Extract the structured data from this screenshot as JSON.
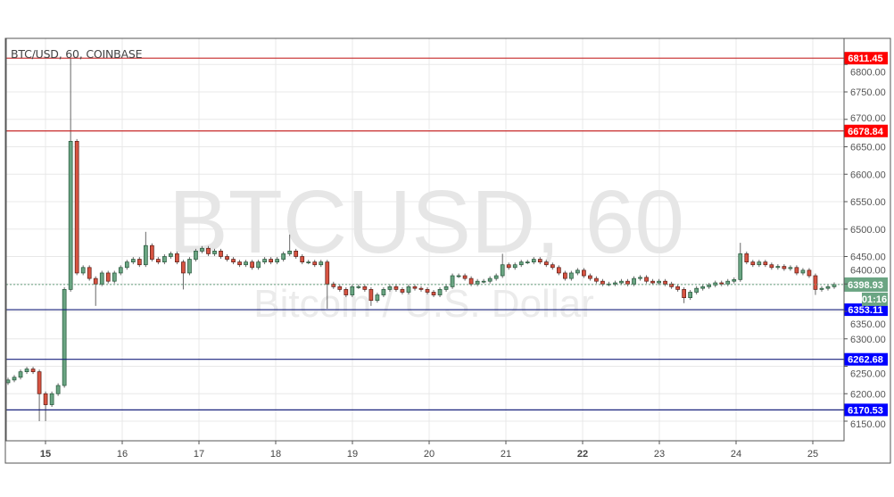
{
  "header": {
    "title": "BTC/USD, 60, COINBASE"
  },
  "watermark": {
    "symbol": "BTCUSD, 60",
    "description": "Bitcoin / U.S. Dollar"
  },
  "chart_data": {
    "type": "candlestick",
    "symbol": "BTC/USD",
    "interval": "60",
    "exchange": "COINBASE",
    "ylim": [
      6120,
      6855
    ],
    "y_ticks": [
      6150,
      6200,
      6250,
      6300,
      6350,
      6400,
      6450,
      6500,
      6550,
      6600,
      6650,
      6700,
      6750,
      6800
    ],
    "x_ticks": [
      "15",
      "16",
      "17",
      "18",
      "19",
      "20",
      "21",
      "22",
      "23",
      "24",
      "25"
    ],
    "x_ticks_bold": [
      "15",
      "22"
    ],
    "grid": true,
    "candle_interval_hours": 2,
    "close": [
      6225,
      6230,
      6240,
      6245,
      6240,
      6200,
      6180,
      6200,
      6215,
      6390,
      6660,
      6420,
      6430,
      6410,
      6400,
      6420,
      6405,
      6420,
      6430,
      6440,
      6445,
      6435,
      6470,
      6445,
      6440,
      6450,
      6455,
      6440,
      6420,
      6445,
      6460,
      6465,
      6455,
      6460,
      6450,
      6445,
      6440,
      6435,
      6440,
      6430,
      6440,
      6445,
      6440,
      6445,
      6455,
      6460,
      6450,
      6440,
      6440,
      6435,
      6440,
      6400,
      6395,
      6390,
      6380,
      6395,
      6395,
      6390,
      6370,
      6380,
      6390,
      6395,
      6390,
      6385,
      6395,
      6392,
      6390,
      6385,
      6380,
      6390,
      6395,
      6415,
      6415,
      6410,
      6400,
      6405,
      6405,
      6410,
      6415,
      6435,
      6430,
      6435,
      6440,
      6440,
      6445,
      6440,
      6435,
      6430,
      6420,
      6410,
      6420,
      6425,
      6415,
      6410,
      6405,
      6400,
      6400,
      6402,
      6405,
      6400,
      6410,
      6412,
      6405,
      6402,
      6405,
      6400,
      6395,
      6390,
      6375,
      6385,
      6392,
      6395,
      6398,
      6402,
      6400,
      6405,
      6408,
      6455,
      6440,
      6435,
      6440,
      6435,
      6430,
      6432,
      6428,
      6430,
      6420,
      6425,
      6415,
      6390,
      6392,
      6395,
      6398.93
    ],
    "highs": {
      "10": 6811.45,
      "22": 6495,
      "45": 6490,
      "79": 6455,
      "117": 6475
    },
    "lows": {
      "5": 6150,
      "6": 6150,
      "14": 6360,
      "28": 6390,
      "51": 6355,
      "58": 6360,
      "108": 6365,
      "129": 6380
    },
    "horizontal_lines": [
      {
        "value": "6811.45",
        "color": "#ff0000",
        "line": "#c62828"
      },
      {
        "value": "6678.84",
        "color": "#ff0000",
        "line": "#c62828"
      },
      {
        "value": "6353.11",
        "color": "#0000ff",
        "line": "#1a237e"
      },
      {
        "value": "6262.68",
        "color": "#0000ff",
        "line": "#1a237e"
      },
      {
        "value": "6170.53",
        "color": "#0000ff",
        "line": "#1a237e"
      }
    ],
    "last_price": {
      "value": "6398.93",
      "countdown": "01:16",
      "color": "#6ba583"
    },
    "colors": {
      "up": "#6ba583",
      "up_border": "#225437",
      "down": "#d75442",
      "down_border": "#5b1a13"
    }
  }
}
